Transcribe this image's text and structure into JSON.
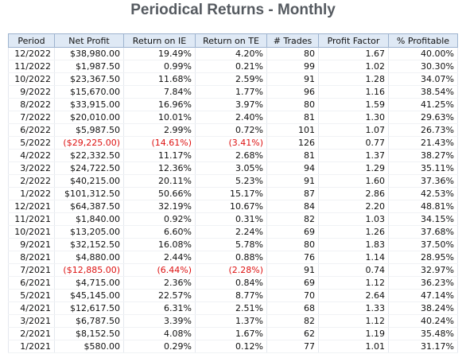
{
  "header": {
    "title": "Periodical Returns - Monthly"
  },
  "table": {
    "columns": [
      "Period",
      "Net Profit",
      "Return on IE",
      "Return on TE",
      "# Trades",
      "Profit Factor",
      "% Profitable"
    ],
    "rows": [
      [
        "12/2022",
        "$38,980.00",
        "19.49%",
        "4.20%",
        "80",
        "1.67",
        "40.00%"
      ],
      [
        "11/2022",
        "$1,987.50",
        "0.99%",
        "0.21%",
        "99",
        "1.02",
        "30.30%"
      ],
      [
        "10/2022",
        "$23,367.50",
        "11.68%",
        "2.59%",
        "91",
        "1.28",
        "34.07%"
      ],
      [
        "9/2022",
        "$15,670.00",
        "7.84%",
        "1.77%",
        "96",
        "1.16",
        "38.54%"
      ],
      [
        "8/2022",
        "$33,915.00",
        "16.96%",
        "3.97%",
        "80",
        "1.59",
        "41.25%"
      ],
      [
        "7/2022",
        "$20,010.00",
        "10.01%",
        "2.40%",
        "81",
        "1.30",
        "29.63%"
      ],
      [
        "6/2022",
        "$5,987.50",
        "2.99%",
        "0.72%",
        "101",
        "1.07",
        "26.73%"
      ],
      [
        "5/2022",
        "($29,225.00)",
        "(14.61%)",
        "(3.41%)",
        "126",
        "0.77",
        "21.43%"
      ],
      [
        "4/2022",
        "$22,332.50",
        "11.17%",
        "2.68%",
        "81",
        "1.37",
        "38.27%"
      ],
      [
        "3/2022",
        "$24,722.50",
        "12.36%",
        "3.05%",
        "94",
        "1.29",
        "35.11%"
      ],
      [
        "2/2022",
        "$40,215.00",
        "20.11%",
        "5.23%",
        "91",
        "1.60",
        "37.36%"
      ],
      [
        "1/2022",
        "$101,312.50",
        "50.66%",
        "15.17%",
        "87",
        "2.86",
        "42.53%"
      ],
      [
        "12/2021",
        "$64,387.50",
        "32.19%",
        "10.67%",
        "84",
        "2.20",
        "48.81%"
      ],
      [
        "11/2021",
        "$1,840.00",
        "0.92%",
        "0.31%",
        "82",
        "1.03",
        "34.15%"
      ],
      [
        "10/2021",
        "$13,205.00",
        "6.60%",
        "2.24%",
        "69",
        "1.26",
        "37.68%"
      ],
      [
        "9/2021",
        "$32,152.50",
        "16.08%",
        "5.78%",
        "80",
        "1.83",
        "37.50%"
      ],
      [
        "8/2021",
        "$4,880.00",
        "2.44%",
        "0.88%",
        "76",
        "1.14",
        "28.95%"
      ],
      [
        "7/2021",
        "($12,885.00)",
        "(6.44%)",
        "(2.28%)",
        "91",
        "0.74",
        "32.97%"
      ],
      [
        "6/2021",
        "$4,715.00",
        "2.36%",
        "0.84%",
        "69",
        "1.12",
        "36.23%"
      ],
      [
        "5/2021",
        "$45,145.00",
        "22.57%",
        "8.77%",
        "70",
        "2.64",
        "47.14%"
      ],
      [
        "4/2021",
        "$12,617.50",
        "6.31%",
        "2.51%",
        "68",
        "1.33",
        "38.24%"
      ],
      [
        "3/2021",
        "$6,787.50",
        "3.39%",
        "1.37%",
        "82",
        "1.12",
        "40.24%"
      ],
      [
        "2/2021",
        "$8,152.50",
        "4.08%",
        "1.67%",
        "62",
        "1.19",
        "35.48%"
      ],
      [
        "1/2021",
        "$580.00",
        "0.29%",
        "0.12%",
        "77",
        "1.01",
        "31.17%"
      ]
    ]
  }
}
